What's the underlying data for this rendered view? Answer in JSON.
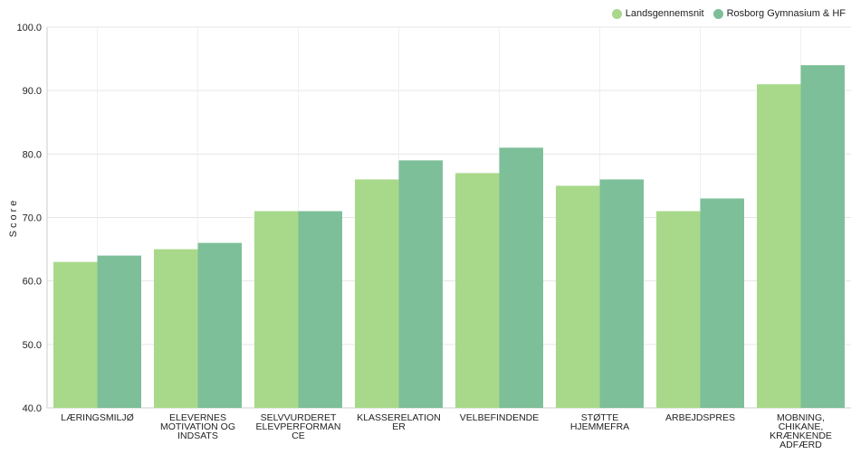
{
  "chart_data": {
    "type": "bar",
    "title": "",
    "xlabel": "",
    "ylabel": "Score",
    "ylim": [
      40,
      100
    ],
    "yticks": [
      "100.0",
      "90.0",
      "80.0",
      "70.0",
      "60.0",
      "50.0",
      "40.0"
    ],
    "ytick_values": [
      100,
      90,
      80,
      70,
      60,
      50,
      40
    ],
    "grid": true,
    "legend_position": "top-right",
    "categories": [
      [
        "LÆRINGSMILJØ"
      ],
      [
        "ELEVERNES",
        "MOTIVATION OG",
        "INDSATS"
      ],
      [
        "SELVVURDERET",
        "ELEVPERFORMAN",
        "CE"
      ],
      [
        "KLASSERELATION",
        "ER"
      ],
      [
        "VELBEFINDENDE"
      ],
      [
        "STØTTE",
        "HJEMMEFRA"
      ],
      [
        "ARBEJDSPRES"
      ],
      [
        "MOBNING,",
        "CHIKANE,",
        "KRÆNKENDE",
        "ADFÆRD"
      ]
    ],
    "series": [
      {
        "name": "Landsgennemsnit",
        "color": "#a8d98a",
        "values": [
          63,
          65,
          71,
          76,
          77,
          75,
          71,
          91
        ]
      },
      {
        "name": "Rosborg Gymnasium & HF",
        "color": "#7dbf98",
        "values": [
          64,
          66,
          71,
          79,
          81,
          76,
          73,
          94
        ]
      }
    ]
  }
}
